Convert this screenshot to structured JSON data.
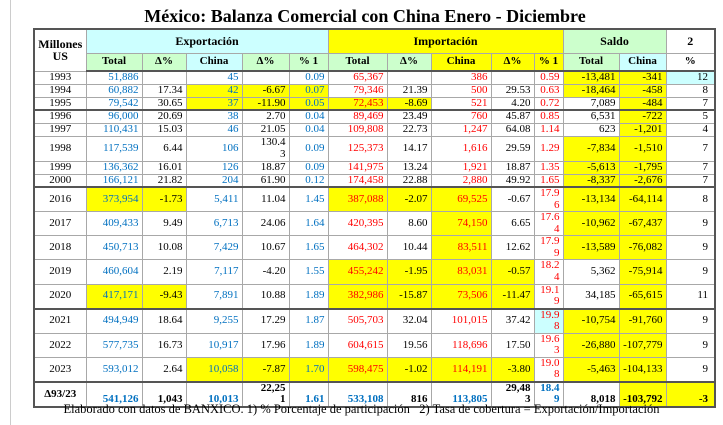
{
  "title": "México: Balanza Comercial con China Enero - Diciembre",
  "footer": "Elaborado con datos de BANXICO. 1) % Porcentaje de participación   2) Tasa de cobertura = Exportación/Importación",
  "colors": {
    "yellow": "#ffff00",
    "cyan": "#ccffff",
    "green": "#ccffcc",
    "blue": "#0070c0",
    "red": "#ff0000"
  },
  "table": {
    "unit": "Millones US",
    "groups": {
      "exportacion": "Exportación",
      "importacion": "Importación",
      "saldo": "Saldo",
      "note2": "2"
    },
    "subheaders": [
      "Total",
      "Δ%",
      "China",
      "Δ%",
      "% 1",
      "Total",
      "Δ%",
      "China",
      "Δ%",
      "% 1",
      "Total",
      "China",
      "%"
    ],
    "column_colors": [
      "blue",
      "black",
      "blue",
      "black",
      "blue",
      "red",
      "black",
      "red",
      "black",
      "red",
      "black",
      "black",
      "black"
    ],
    "rows": [
      {
        "y": "1993",
        "h": "s",
        "cells": [
          {
            "t": "51,886"
          },
          {
            "t": ""
          },
          {
            "t": "45"
          },
          {
            "t": ""
          },
          {
            "t": "0.09"
          },
          {
            "t": "65,367"
          },
          {
            "t": ""
          },
          {
            "t": "386"
          },
          {
            "t": ""
          },
          {
            "t": "0.59"
          },
          {
            "t": "-13,481",
            "bg": "yellow"
          },
          {
            "t": "-341",
            "bg": "yellow"
          },
          {
            "t": "12",
            "bg": "cyan"
          }
        ]
      },
      {
        "y": "1994",
        "h": "s",
        "cells": [
          {
            "t": "60,882"
          },
          {
            "t": "17.34"
          },
          {
            "t": "42",
            "bg": "yellow"
          },
          {
            "t": "-6.67",
            "bg": "yellow"
          },
          {
            "t": "0.07",
            "bg": "yellow"
          },
          {
            "t": "79,346"
          },
          {
            "t": "21.39"
          },
          {
            "t": "500"
          },
          {
            "t": "29.53"
          },
          {
            "t": "0.63"
          },
          {
            "t": "-18,464",
            "bg": "yellow"
          },
          {
            "t": "-458",
            "bg": "yellow"
          },
          {
            "t": "8"
          }
        ]
      },
      {
        "y": "1995",
        "h": "s",
        "cells": [
          {
            "t": "79,542"
          },
          {
            "t": "30.65"
          },
          {
            "t": "37",
            "bg": "yellow"
          },
          {
            "t": "-11.90",
            "bg": "yellow"
          },
          {
            "t": "0.05",
            "bg": "yellow"
          },
          {
            "t": "72,453",
            "bg": "yellow"
          },
          {
            "t": "-8.69",
            "bg": "yellow"
          },
          {
            "t": "521"
          },
          {
            "t": "4.20"
          },
          {
            "t": "0.72"
          },
          {
            "t": "7,089"
          },
          {
            "t": "-484",
            "bg": "yellow"
          },
          {
            "t": "7"
          }
        ]
      },
      {
        "y": "1996",
        "h": "s",
        "sep": true,
        "cells": [
          {
            "t": "96,000"
          },
          {
            "t": "20.69"
          },
          {
            "t": "38"
          },
          {
            "t": "2.70"
          },
          {
            "t": "0.04"
          },
          {
            "t": "89,469"
          },
          {
            "t": "23.49"
          },
          {
            "t": "760"
          },
          {
            "t": "45.87"
          },
          {
            "t": "0.85"
          },
          {
            "t": "6,531"
          },
          {
            "t": "-722",
            "bg": "yellow"
          },
          {
            "t": "5"
          }
        ]
      },
      {
        "y": "1997",
        "h": "s",
        "cells": [
          {
            "t": "110,431"
          },
          {
            "t": "15.03"
          },
          {
            "t": "46"
          },
          {
            "t": "21.05"
          },
          {
            "t": "0.04"
          },
          {
            "t": "109,808"
          },
          {
            "t": "22.73"
          },
          {
            "t": "1,247"
          },
          {
            "t": "64.08"
          },
          {
            "t": "1.14"
          },
          {
            "t": "623"
          },
          {
            "t": "-1,201",
            "bg": "yellow"
          },
          {
            "t": "4"
          }
        ]
      },
      {
        "y": "1998",
        "h": "m",
        "cells": [
          {
            "t": "117,539"
          },
          {
            "t": "6.44"
          },
          {
            "t": "106"
          },
          {
            "t": "130.4\n3"
          },
          {
            "t": "0.09"
          },
          {
            "t": "125,373"
          },
          {
            "t": "14.17"
          },
          {
            "t": "1,616"
          },
          {
            "t": "29.59"
          },
          {
            "t": "1.29"
          },
          {
            "t": "-7,834",
            "bg": "yellow"
          },
          {
            "t": "-1,510",
            "bg": "yellow"
          },
          {
            "t": "7"
          }
        ]
      },
      {
        "y": "1999",
        "h": "s",
        "cells": [
          {
            "t": "136,362"
          },
          {
            "t": "16.01"
          },
          {
            "t": "126"
          },
          {
            "t": "18.87"
          },
          {
            "t": "0.09"
          },
          {
            "t": "141,975"
          },
          {
            "t": "13.24"
          },
          {
            "t": "1,921"
          },
          {
            "t": "18.87"
          },
          {
            "t": "1.35"
          },
          {
            "t": "-5,613",
            "bg": "yellow"
          },
          {
            "t": "-1,795",
            "bg": "yellow"
          },
          {
            "t": "7"
          }
        ]
      },
      {
        "y": "2000",
        "h": "s",
        "cells": [
          {
            "t": "166,121"
          },
          {
            "t": "21.82"
          },
          {
            "t": "204"
          },
          {
            "t": "61.90"
          },
          {
            "t": "0.12"
          },
          {
            "t": "174,458"
          },
          {
            "t": "22.88"
          },
          {
            "t": "2,880"
          },
          {
            "t": "49.92"
          },
          {
            "t": "1.65"
          },
          {
            "t": "-8,337",
            "bg": "yellow"
          },
          {
            "t": "-2,676",
            "bg": "yellow"
          },
          {
            "t": "7"
          }
        ]
      },
      {
        "y": "2016",
        "h": "l",
        "sep": true,
        "cells": [
          {
            "t": "373,954",
            "bg": "yellow"
          },
          {
            "t": "-1.73",
            "bg": "yellow"
          },
          {
            "t": "5,411"
          },
          {
            "t": "11.04"
          },
          {
            "t": "1.45"
          },
          {
            "t": "387,088",
            "bg": "yellow"
          },
          {
            "t": "-2.07",
            "bg": "yellow"
          },
          {
            "t": "69,525",
            "bg": "yellow"
          },
          {
            "t": "-0.67"
          },
          {
            "t": "17.9\n6"
          },
          {
            "t": "-13,134",
            "bg": "yellow"
          },
          {
            "t": "-64,114",
            "bg": "yellow"
          },
          {
            "t": "8"
          }
        ]
      },
      {
        "y": "2017",
        "h": "l",
        "cells": [
          {
            "t": "409,433"
          },
          {
            "t": "9.49"
          },
          {
            "t": "6,713"
          },
          {
            "t": "24.06"
          },
          {
            "t": "1.64"
          },
          {
            "t": "420,395"
          },
          {
            "t": "8.60"
          },
          {
            "t": "74,150",
            "bg": "yellow"
          },
          {
            "t": "6.65"
          },
          {
            "t": "17.6\n4"
          },
          {
            "t": "-10,962",
            "bg": "yellow"
          },
          {
            "t": "-67,437",
            "bg": "yellow"
          },
          {
            "t": "9"
          }
        ]
      },
      {
        "y": "2018",
        "h": "l",
        "cells": [
          {
            "t": "450,713"
          },
          {
            "t": "10.08"
          },
          {
            "t": "7,429"
          },
          {
            "t": "10.67"
          },
          {
            "t": "1.65"
          },
          {
            "t": "464,302"
          },
          {
            "t": "10.44"
          },
          {
            "t": "83,511",
            "bg": "yellow"
          },
          {
            "t": "12.62"
          },
          {
            "t": "17.9\n9"
          },
          {
            "t": "-13,589",
            "bg": "yellow"
          },
          {
            "t": "-76,082",
            "bg": "yellow"
          },
          {
            "t": "9"
          }
        ]
      },
      {
        "y": "2019",
        "h": "l",
        "cells": [
          {
            "t": "460,604"
          },
          {
            "t": "2.19"
          },
          {
            "t": "7,117"
          },
          {
            "t": "-4.20"
          },
          {
            "t": "1.55"
          },
          {
            "t": "455,242",
            "bg": "yellow"
          },
          {
            "t": "-1.95",
            "bg": "yellow"
          },
          {
            "t": "83,031",
            "bg": "yellow"
          },
          {
            "t": "-0.57",
            "bg": "yellow"
          },
          {
            "t": "18.2\n4"
          },
          {
            "t": "5,362"
          },
          {
            "t": "-75,914",
            "bg": "yellow"
          },
          {
            "t": "9"
          }
        ]
      },
      {
        "y": "2020",
        "h": "l",
        "cells": [
          {
            "t": "417,171",
            "bg": "yellow"
          },
          {
            "t": "-9.43",
            "bg": "yellow"
          },
          {
            "t": "7,891"
          },
          {
            "t": "10.88"
          },
          {
            "t": "1.89"
          },
          {
            "t": "382,986",
            "bg": "yellow"
          },
          {
            "t": "-15.87",
            "bg": "yellow"
          },
          {
            "t": "73,506",
            "bg": "yellow"
          },
          {
            "t": "-11.47",
            "bg": "yellow"
          },
          {
            "t": "19.1\n9"
          },
          {
            "t": "34,185"
          },
          {
            "t": "-65,615",
            "bg": "yellow"
          },
          {
            "t": "11"
          }
        ]
      },
      {
        "y": "2021",
        "h": "l",
        "sep": true,
        "cells": [
          {
            "t": "494,949"
          },
          {
            "t": "18.64"
          },
          {
            "t": "9,255"
          },
          {
            "t": "17.29"
          },
          {
            "t": "1.87"
          },
          {
            "t": "505,703"
          },
          {
            "t": "32.04"
          },
          {
            "t": "101,015"
          },
          {
            "t": "37.42"
          },
          {
            "t": "19.9\n8",
            "bg": "cyan"
          },
          {
            "t": "-10,754",
            "bg": "yellow"
          },
          {
            "t": "-91,760",
            "bg": "yellow"
          },
          {
            "t": "9"
          }
        ]
      },
      {
        "y": "2022",
        "h": "l",
        "cells": [
          {
            "t": "577,735"
          },
          {
            "t": "16.73"
          },
          {
            "t": "10,917"
          },
          {
            "t": "17.96"
          },
          {
            "t": "1.89"
          },
          {
            "t": "604,615"
          },
          {
            "t": "19.56"
          },
          {
            "t": "118,696"
          },
          {
            "t": "17.50"
          },
          {
            "t": "19.6\n3"
          },
          {
            "t": "-26,880",
            "bg": "yellow"
          },
          {
            "t": "-107,779",
            "bg": "yellow"
          },
          {
            "t": "9"
          }
        ]
      },
      {
        "y": "2023",
        "h": "l",
        "cells": [
          {
            "t": "593,012"
          },
          {
            "t": "2.64"
          },
          {
            "t": "10,058",
            "bg": "yellow"
          },
          {
            "t": "-7.87",
            "bg": "yellow"
          },
          {
            "t": "1.70",
            "bg": "yellow"
          },
          {
            "t": "598,475",
            "bg": "yellow"
          },
          {
            "t": "-1.02",
            "bg": "yellow"
          },
          {
            "t": "114,191",
            "bg": "yellow"
          },
          {
            "t": "-3.80",
            "bg": "yellow"
          },
          {
            "t": "19.0\n8"
          },
          {
            "t": "-5,463",
            "bg": "yellow"
          },
          {
            "t": "-104,133",
            "bg": "yellow"
          },
          {
            "t": "9"
          }
        ]
      },
      {
        "y": "Δ93/23",
        "h": "m",
        "sep": true,
        "bold": true,
        "bottom": true,
        "cells": [
          {
            "t": "541,126",
            "c": "blue"
          },
          {
            "t": "1,043",
            "c": "black"
          },
          {
            "t": "10,013",
            "c": "blue"
          },
          {
            "t": "22,25\n1",
            "c": "black"
          },
          {
            "t": "1.61",
            "c": "blue"
          },
          {
            "t": "533,108",
            "c": "blue"
          },
          {
            "t": "816",
            "c": "black"
          },
          {
            "t": "113,805",
            "c": "blue"
          },
          {
            "t": "29,48\n3",
            "c": "black"
          },
          {
            "t": "18.4\n9",
            "c": "blue"
          },
          {
            "t": "8,018",
            "c": "black"
          },
          {
            "t": "-103,792",
            "bg": "yellow",
            "c": "black"
          },
          {
            "t": "-3",
            "bg": "yellow",
            "c": "black"
          }
        ]
      }
    ]
  }
}
